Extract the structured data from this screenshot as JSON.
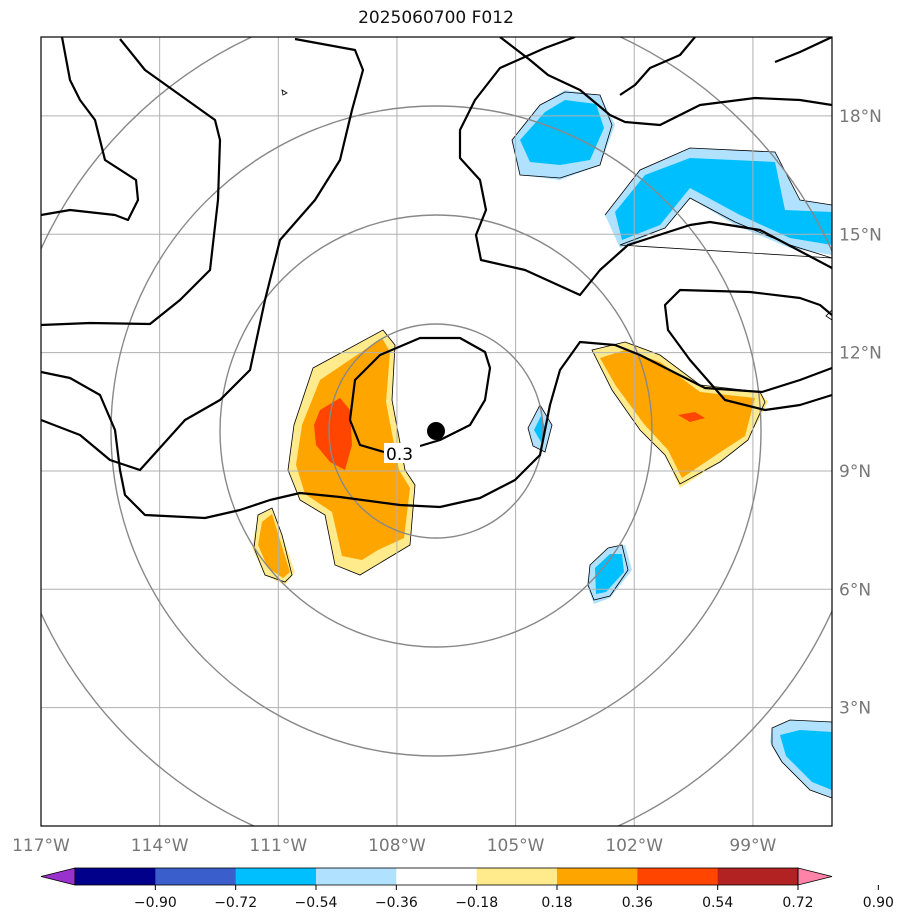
{
  "title": "2025060700 F012",
  "chart_data": {
    "type": "map",
    "title": "2025060700 F012",
    "extent": {
      "lon": [
        -117,
        -97
      ],
      "lat": [
        0,
        20
      ]
    },
    "lon_ticks": [
      {
        "value": -117,
        "label": "117°W"
      },
      {
        "value": -114,
        "label": "114°W"
      },
      {
        "value": -111,
        "label": "111°W"
      },
      {
        "value": -108,
        "label": "108°W"
      },
      {
        "value": -105,
        "label": "105°W"
      },
      {
        "value": -102,
        "label": "102°W"
      },
      {
        "value": -99,
        "label": "99°W"
      }
    ],
    "lat_ticks": [
      {
        "value": 3,
        "label": "3°N"
      },
      {
        "value": 6,
        "label": "6°N"
      },
      {
        "value": 9,
        "label": "9°N"
      },
      {
        "value": 12,
        "label": "12°N"
      },
      {
        "value": 15,
        "label": "15°N"
      },
      {
        "value": 18,
        "label": "18°N"
      }
    ],
    "center": {
      "lon": -106.9,
      "lat": 10.1
    },
    "contour_label": "0.3",
    "colorbar": {
      "ticks": [
        "−0.90",
        "−0.72",
        "−0.54",
        "−0.36",
        "−0.18",
        "0.18",
        "0.36",
        "0.54",
        "0.72",
        "0.90"
      ],
      "colors": [
        "#9932cc",
        "#00008b",
        "#3a5fcd",
        "#00bfff",
        "#b0e2ff",
        "#ffffff",
        "#ffeb8c",
        "#ffa500",
        "#ff4500",
        "#b22222",
        "#ff83a9"
      ]
    },
    "grid": true
  }
}
